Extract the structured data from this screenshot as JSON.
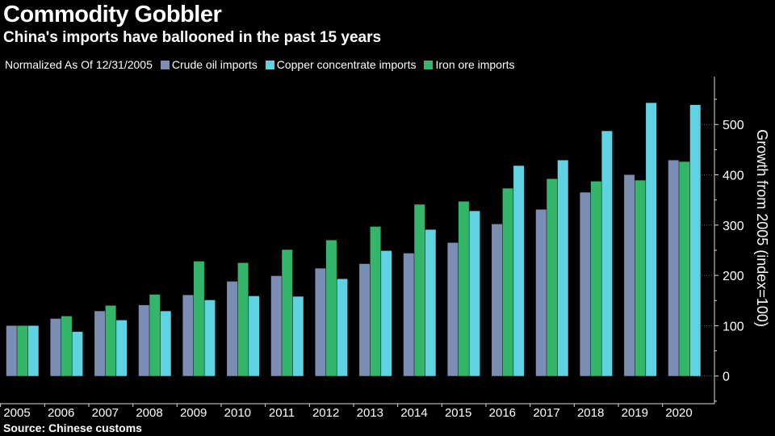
{
  "title": "Commodity Gobbler",
  "subtitle": "China's imports have ballooned in the past 15 years",
  "source": "Source: Chinese customs",
  "chart_data": {
    "type": "bar",
    "legend_prefix": "Normalized As Of 12/31/2005",
    "legend_placement": "top-left",
    "ylabel": "Growth from 2005 (index=100)",
    "y_axis_side": "right",
    "ylim": [
      -55,
      595
    ],
    "yticks": [
      0,
      100,
      200,
      300,
      400,
      500
    ],
    "grid": false,
    "categories": [
      "2005",
      "2006",
      "2007",
      "2008",
      "2009",
      "2010",
      "2011",
      "2012",
      "2013",
      "2014",
      "2015",
      "2016",
      "2017",
      "2018",
      "2019",
      "2020"
    ],
    "series": [
      {
        "name": "Crude oil imports",
        "color": "#7b8db3",
        "values": [
          100,
          114,
          129,
          141,
          161,
          188,
          199,
          214,
          223,
          244,
          265,
          302,
          331,
          365,
          400,
          429
        ]
      },
      {
        "name": "Iron ore imports",
        "color": "#33b56a",
        "values": [
          100,
          119,
          140,
          162,
          228,
          225,
          251,
          270,
          297,
          341,
          347,
          373,
          392,
          387,
          389,
          426
        ]
      },
      {
        "name": "Copper concentrate imports",
        "color": "#5fd3e3",
        "values": [
          100,
          88,
          111,
          129,
          151,
          159,
          158,
          193,
          249,
          291,
          328,
          418,
          429,
          487,
          543,
          539
        ]
      }
    ],
    "legend_order": [
      "Crude oil imports",
      "Copper concentrate imports",
      "Iron ore imports"
    ]
  }
}
